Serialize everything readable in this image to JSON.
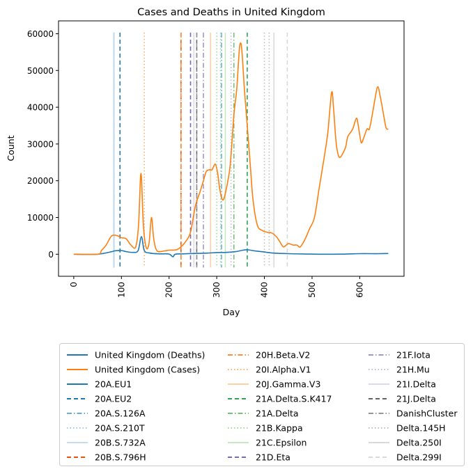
{
  "chart_data": {
    "type": "line",
    "title": "Cases and Deaths in United Kingdom",
    "xlabel": "Day",
    "ylabel": "Count",
    "xlim": [
      -32,
      693
    ],
    "ylim": [
      -6000,
      63500
    ],
    "xticks": [
      0,
      100,
      200,
      300,
      400,
      500,
      600
    ],
    "yticks": [
      0,
      10000,
      20000,
      30000,
      40000,
      50000,
      60000
    ],
    "grid": false,
    "legend_position": "below plot",
    "series": [
      {
        "name": "United Kingdom (Deaths)",
        "color": "#1f77b4",
        "style": "solid",
        "points": [
          [
            0,
            0
          ],
          [
            50,
            0
          ],
          [
            80,
            700
          ],
          [
            85,
            900
          ],
          [
            100,
            1000
          ],
          [
            110,
            700
          ],
          [
            125,
            500
          ],
          [
            135,
            1000
          ],
          [
            142,
            4800
          ],
          [
            148,
            1000
          ],
          [
            160,
            300
          ],
          [
            180,
            100
          ],
          [
            200,
            50
          ],
          [
            208,
            -700
          ],
          [
            213,
            0
          ],
          [
            230,
            100
          ],
          [
            250,
            200
          ],
          [
            280,
            300
          ],
          [
            300,
            450
          ],
          [
            320,
            500
          ],
          [
            340,
            700
          ],
          [
            355,
            1100
          ],
          [
            365,
            1200
          ],
          [
            380,
            900
          ],
          [
            400,
            600
          ],
          [
            420,
            300
          ],
          [
            450,
            150
          ],
          [
            480,
            80
          ],
          [
            520,
            0
          ],
          [
            560,
            30
          ],
          [
            600,
            150
          ],
          [
            640,
            150
          ],
          [
            660,
            200
          ]
        ]
      },
      {
        "name": "United Kingdom (Cases)",
        "color": "#ff7f0e",
        "style": "solid",
        "points": [
          [
            0,
            0
          ],
          [
            50,
            0
          ],
          [
            58,
            1000
          ],
          [
            68,
            2500
          ],
          [
            78,
            4800
          ],
          [
            85,
            5200
          ],
          [
            92,
            5000
          ],
          [
            100,
            4500
          ],
          [
            110,
            4200
          ],
          [
            120,
            2500
          ],
          [
            130,
            2000
          ],
          [
            136,
            8000
          ],
          [
            141,
            22000
          ],
          [
            146,
            8000
          ],
          [
            152,
            1800
          ],
          [
            158,
            3000
          ],
          [
            163,
            10000
          ],
          [
            168,
            4000
          ],
          [
            175,
            900
          ],
          [
            190,
            900
          ],
          [
            200,
            1100
          ],
          [
            215,
            1200
          ],
          [
            225,
            2000
          ],
          [
            235,
            3500
          ],
          [
            245,
            6000
          ],
          [
            255,
            13000
          ],
          [
            265,
            17000
          ],
          [
            272,
            20000
          ],
          [
            278,
            22500
          ],
          [
            285,
            23000
          ],
          [
            290,
            23000
          ],
          [
            297,
            24500
          ],
          [
            302,
            22000
          ],
          [
            306,
            18000
          ],
          [
            312,
            14800
          ],
          [
            318,
            16500
          ],
          [
            328,
            24000
          ],
          [
            336,
            38000
          ],
          [
            342,
            45000
          ],
          [
            347,
            55000
          ],
          [
            350,
            57500
          ],
          [
            353,
            55000
          ],
          [
            358,
            45000
          ],
          [
            364,
            35000
          ],
          [
            370,
            25000
          ],
          [
            376,
            15000
          ],
          [
            385,
            8000
          ],
          [
            395,
            6500
          ],
          [
            405,
            6000
          ],
          [
            415,
            5800
          ],
          [
            425,
            4800
          ],
          [
            432,
            3500
          ],
          [
            440,
            2000
          ],
          [
            450,
            2900
          ],
          [
            460,
            2500
          ],
          [
            468,
            2500
          ],
          [
            475,
            2000
          ],
          [
            485,
            4000
          ],
          [
            495,
            7000
          ],
          [
            505,
            10000
          ],
          [
            515,
            18000
          ],
          [
            525,
            26000
          ],
          [
            533,
            33000
          ],
          [
            541,
            44000
          ],
          [
            545,
            40000
          ],
          [
            550,
            31000
          ],
          [
            555,
            27000
          ],
          [
            560,
            26500
          ],
          [
            570,
            29000
          ],
          [
            575,
            32000
          ],
          [
            585,
            34000
          ],
          [
            593,
            37000
          ],
          [
            597,
            35000
          ],
          [
            602,
            31000
          ],
          [
            605,
            30500
          ],
          [
            615,
            34000
          ],
          [
            620,
            34000
          ],
          [
            625,
            37000
          ],
          [
            633,
            43000
          ],
          [
            638,
            45600
          ],
          [
            643,
            43000
          ],
          [
            650,
            38000
          ],
          [
            655,
            34500
          ],
          [
            660,
            34000
          ]
        ]
      }
    ],
    "variant_lines": [
      {
        "name": "20A.EU1",
        "x": 84,
        "color": "#1f77b4",
        "dash": "solid"
      },
      {
        "name": "20A.EU2",
        "x": 97,
        "color": "#1f77b4",
        "dash": "dashed"
      },
      {
        "name": "20A.S.126A",
        "x": 84,
        "color": "#6aaed6",
        "dash": "dashdot"
      },
      {
        "name": "20A.S.210T",
        "x": 84,
        "color": "#9ecae1",
        "dash": "dotted"
      },
      {
        "name": "20B.S.732A",
        "x": 84,
        "color": "#c6dbef",
        "dash": "solid"
      },
      {
        "name": "20B.S.796H",
        "x": 225,
        "color": "#e6550d",
        "dash": "dashed"
      },
      {
        "name": "20H.Beta.V2",
        "x": 225,
        "color": "#fd8d3c",
        "dash": "dashdot"
      },
      {
        "name": "20I.Alpha.V1",
        "x": 148,
        "color": "#fdae6b",
        "dash": "dotted"
      },
      {
        "name": "20J.Gamma.V3",
        "x": 287,
        "color": "#fdd0a2",
        "dash": "solid"
      },
      {
        "name": "21A.Delta.S.K417",
        "x": 364,
        "color": "#31a354",
        "dash": "dashed"
      },
      {
        "name": "21A.Delta",
        "x": 336,
        "color": "#74c476",
        "dash": "dashdot"
      },
      {
        "name": "21B.Kappa",
        "x": 300,
        "color": "#a1d99b",
        "dash": "dotted"
      },
      {
        "name": "21C.Epsilon",
        "x": 318,
        "color": "#c7e9c0",
        "dash": "solid"
      },
      {
        "name": "21D.Eta",
        "x": 245,
        "color": "#756bb1",
        "dash": "dashed"
      },
      {
        "name": "21F.Iota",
        "x": 272,
        "color": "#9e9ac8",
        "dash": "dashdot"
      },
      {
        "name": "21H.Mu",
        "x": 330,
        "color": "#bcbddc",
        "dash": "dotted"
      },
      {
        "name": "21I.Delta",
        "x": 252,
        "color": "#dadaeb",
        "dash": "solid"
      },
      {
        "name": "21J.Delta",
        "x": 258,
        "color": "#636363",
        "dash": "dashed"
      },
      {
        "name": "DanishCluster",
        "x": 258,
        "color": "#969696",
        "dash": "dashdot"
      },
      {
        "name": "Delta.145H",
        "x": 400,
        "color": "#bdbdbd",
        "dash": "dotted"
      },
      {
        "name": "Delta.250I",
        "x": 420,
        "color": "#d9d9d9",
        "dash": "solid"
      },
      {
        "name": "Delta.299I",
        "x": 448,
        "color": "#d9d9d9",
        "dash": "dashed"
      }
    ],
    "extra_lines": [
      {
        "x": 310,
        "color": "#6aaed6",
        "dash": "dashdot"
      },
      {
        "x": 308,
        "color": "#a1d99b",
        "dash": "dotted"
      },
      {
        "x": 410,
        "color": "#bdbdbd",
        "dash": "dotted"
      }
    ]
  }
}
